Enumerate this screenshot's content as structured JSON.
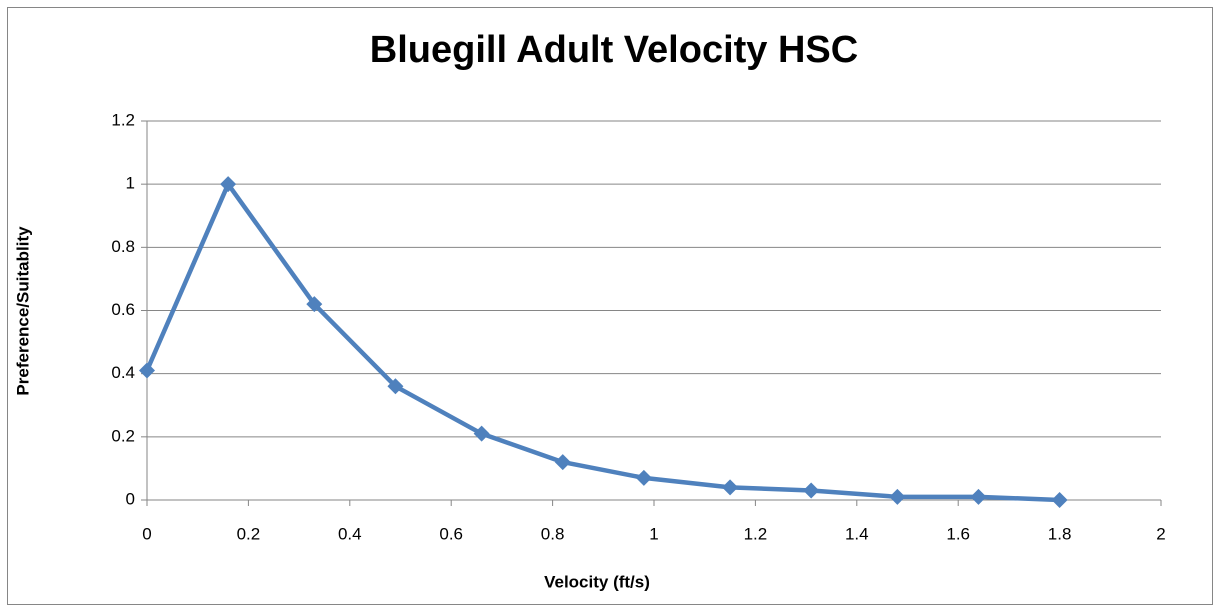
{
  "chart_data": {
    "type": "line",
    "title": "Bluegill Adult Velocity HSC",
    "x_label": "Velocity (ft/s)",
    "y_label": "Preference/Suitablity",
    "x": [
      0,
      0.16,
      0.33,
      0.49,
      0.66,
      0.82,
      0.98,
      1.15,
      1.31,
      1.48,
      1.64,
      1.8
    ],
    "values": [
      0.41,
      1.0,
      0.62,
      0.36,
      0.21,
      0.12,
      0.07,
      0.04,
      0.03,
      0.01,
      0.01,
      0
    ],
    "color": "#4f81bd",
    "marker": "diamond",
    "xlim": [
      0,
      2
    ],
    "xticks": [
      0,
      0.2,
      0.4,
      0.6,
      0.8,
      1,
      1.2,
      1.4,
      1.6,
      1.8,
      2
    ],
    "ylim": [
      0,
      1.2
    ],
    "yticks": [
      0,
      0.2,
      0.4,
      0.6,
      0.8,
      1,
      1.2
    ],
    "grid": true
  }
}
